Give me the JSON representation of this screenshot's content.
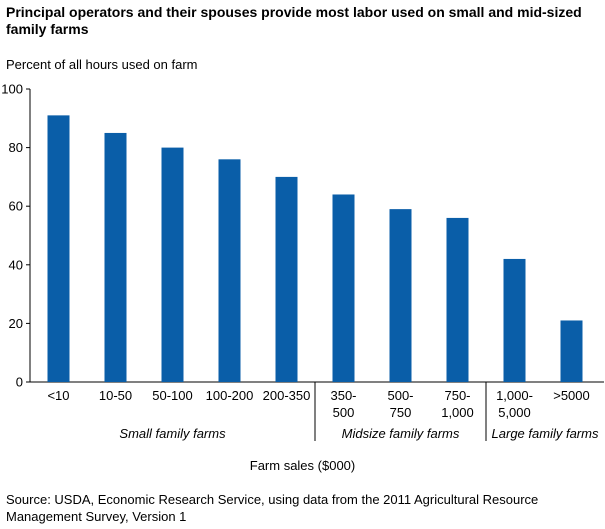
{
  "chart_data": {
    "type": "bar",
    "title": "Principal operators and their spouses provide most labor used on small and mid-sized family farms",
    "ylabel": "Percent of all hours used on farm",
    "xlabel": "Farm sales ($000)",
    "ylim": [
      0,
      100
    ],
    "yticks": [
      "0",
      "20",
      "40",
      "60",
      "80",
      "100"
    ],
    "categories": [
      [
        "<10"
      ],
      [
        "10-50"
      ],
      [
        "50-100"
      ],
      [
        "100-200"
      ],
      [
        "200-350"
      ],
      [
        "350-",
        "500"
      ],
      [
        "500-",
        "750"
      ],
      [
        "750-",
        "1,000"
      ],
      [
        "1,000-",
        "5,000"
      ],
      [
        ">5000"
      ]
    ],
    "values": [
      91,
      85,
      80,
      76,
      70,
      64,
      59,
      56,
      42,
      21
    ],
    "groups": [
      {
        "label": "Small family farms",
        "count": 5
      },
      {
        "label": "Midsize family farms",
        "count": 3
      },
      {
        "label": "Large family farms",
        "count": 2
      }
    ],
    "bar_color": "#0a5ea8",
    "grid": false,
    "source": "Source: USDA, Economic Research Service, using data from the 2011 Agricultural Resource Management Survey, Version 1"
  }
}
